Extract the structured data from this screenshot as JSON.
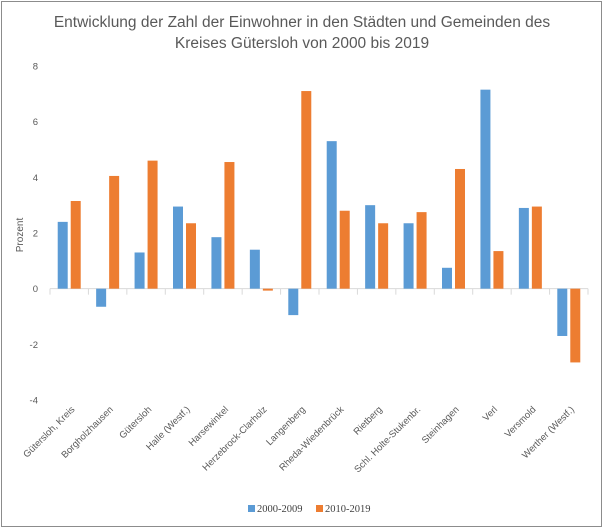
{
  "chart_data": {
    "type": "bar",
    "title_line1": "Entwicklung der Zahl der Einwohner in den Städten und Gemeinden des",
    "title_line2": "Kreises Gütersloh von 2000 bis 2019",
    "xlabel": "",
    "ylabel": "Prozent",
    "ylim": [
      -4,
      8
    ],
    "yticks": [
      -4,
      -2,
      0,
      2,
      4,
      6,
      8
    ],
    "grid": false,
    "legend_position": "bottom",
    "categories": [
      "Gütersloh, Kreis",
      "Borgholzhausen",
      "Gütersloh",
      "Halle (Westf.)",
      "Harsewinkel",
      "Herzebrock-Clarholz",
      "Langenberg",
      "Rheda-Wiedenbrück",
      "Rietberg",
      "Schl. Holte-Stukenbr.",
      "Steinhagen",
      "Verl",
      "Versmold",
      "Werther (Westf.)"
    ],
    "series": [
      {
        "name": "2000-2009",
        "color": "#5b9bd5",
        "values": [
          2.4,
          -0.65,
          1.3,
          2.95,
          1.85,
          1.4,
          -0.95,
          5.3,
          3.0,
          2.35,
          0.75,
          7.15,
          2.9,
          -1.7
        ]
      },
      {
        "name": "2010-2019",
        "color": "#ed7d31",
        "values": [
          3.15,
          4.05,
          4.6,
          2.35,
          4.55,
          -0.07,
          7.1,
          2.8,
          2.35,
          2.75,
          4.3,
          1.35,
          2.95,
          -2.65
        ]
      }
    ]
  }
}
